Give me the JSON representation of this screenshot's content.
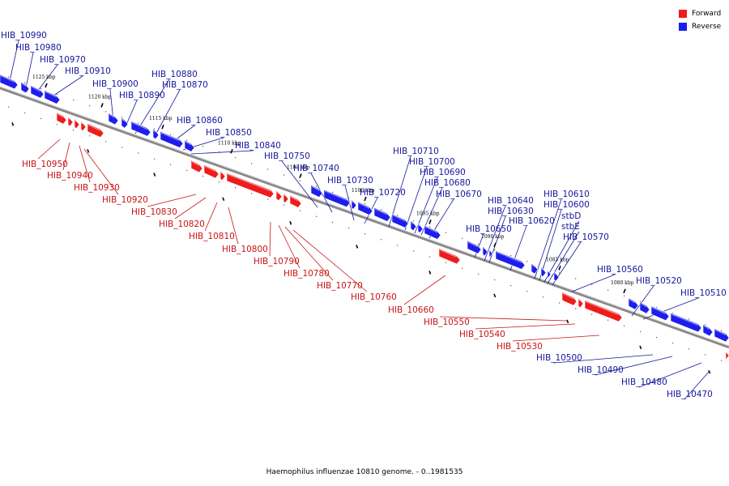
{
  "colors": {
    "forward": "#ee1c1c",
    "reverse": "#1d1dee",
    "forward_label": "#c81414",
    "reverse_label": "#16169e",
    "axis": "#888888"
  },
  "legend": {
    "forward": "Forward",
    "reverse": "Reverse"
  },
  "caption": "Haemophilus influenzae 10810 genome. - 0..1981535",
  "tick_labels": [
    "1125 kbp",
    "1120 kbp",
    "1115 kbp",
    "1110 kbp",
    "1105 kbp",
    "1100 kbp",
    "1095 kbp",
    "1090 kbp",
    "1085 kbp",
    "1080 kbp"
  ],
  "genes_reverse": [
    "HIB_10990",
    "HIB_10980",
    "HIB_10970",
    "HIB_10910",
    "HIB_10900",
    "HIB_10890",
    "HIB_10880",
    "HIB_10870",
    "HIB_10860",
    "HIB_10850",
    "HIB_10840",
    "HIB_10750",
    "HIB_10740",
    "HIB_10730",
    "HIB_10720",
    "HIB_10710",
    "HIB_10700",
    "HIB_10690",
    "HIB_10680",
    "HIB_10670",
    "HIB_10650",
    "HIB_10640",
    "HIB_10630",
    "HIB_10620",
    "HIB_10610",
    "HIB_10600",
    "stbD",
    "stbE",
    "HIB_10570",
    "HIB_10560",
    "HIB_10520",
    "HIB_10510",
    "HIB_10500",
    "HIB_10490",
    "HIB_10480",
    "HIB_10470"
  ],
  "genes_forward": [
    "HIB_10950",
    "HIB_10940",
    "HIB_10930",
    "HIB_10920",
    "HIB_10830",
    "HIB_10820",
    "HIB_10810",
    "HIB_10800",
    "HIB_10790",
    "HIB_10780",
    "HIB_10770",
    "HIB_10760",
    "HIB_10660",
    "HIB_10550",
    "HIB_10540",
    "HIB_10530"
  ]
}
